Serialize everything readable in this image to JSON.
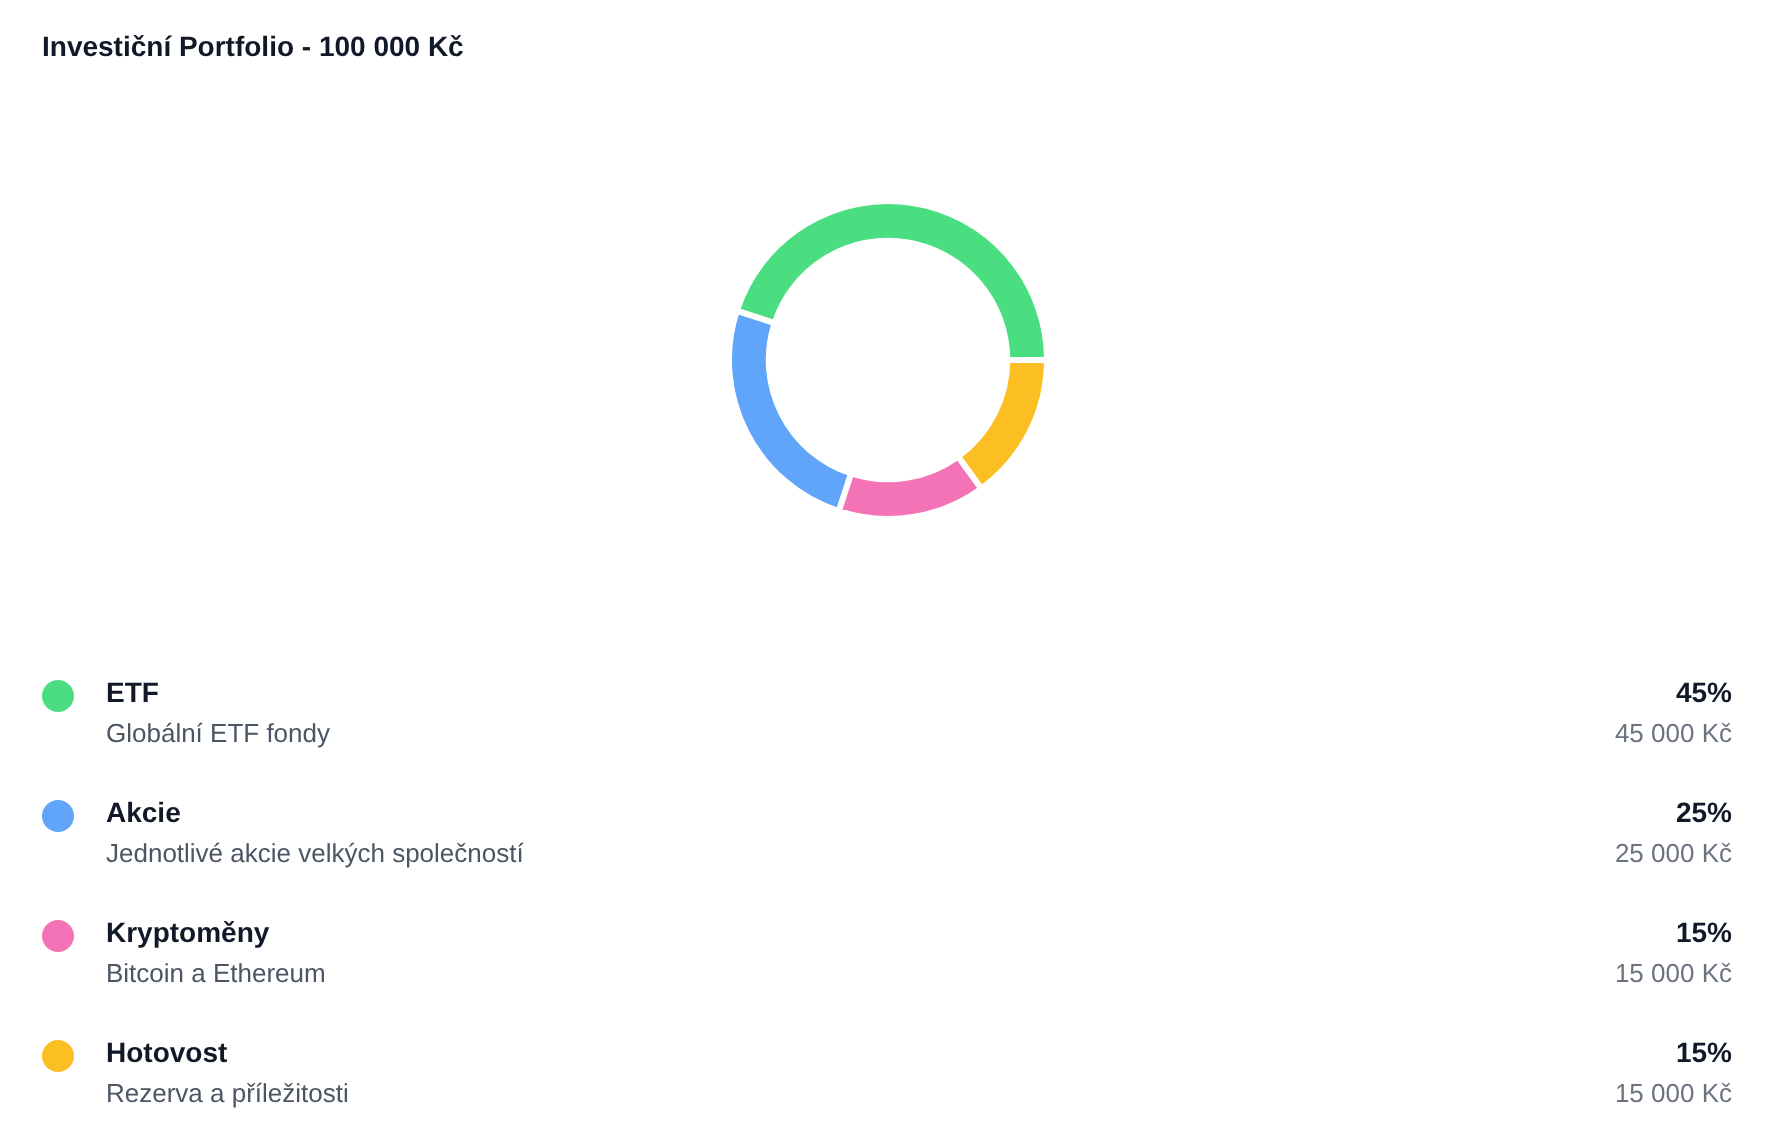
{
  "chart_data": {
    "type": "donut",
    "title": "Investiční Portfolio - 100 000 Kč",
    "categories": [
      "ETF",
      "Akcie",
      "Kryptoměny",
      "Hotovost"
    ],
    "values": [
      45,
      25,
      15,
      15
    ],
    "colors": [
      "#4ade80",
      "#60a5fa",
      "#f472b6",
      "#fbbf24"
    ],
    "value_labels": [
      "45%",
      "25%",
      "15%",
      "15%"
    ],
    "annotations": [
      "Globální ETF fondy",
      "45 000 Kč",
      "Jednotlivé akcie velkých společností",
      "25 000 Kč",
      "Bitcoin a Ethereum",
      "15 000 Kč",
      "Rezerva a příležitosti",
      "15 000 Kč"
    ],
    "legend": "bottom"
  }
}
